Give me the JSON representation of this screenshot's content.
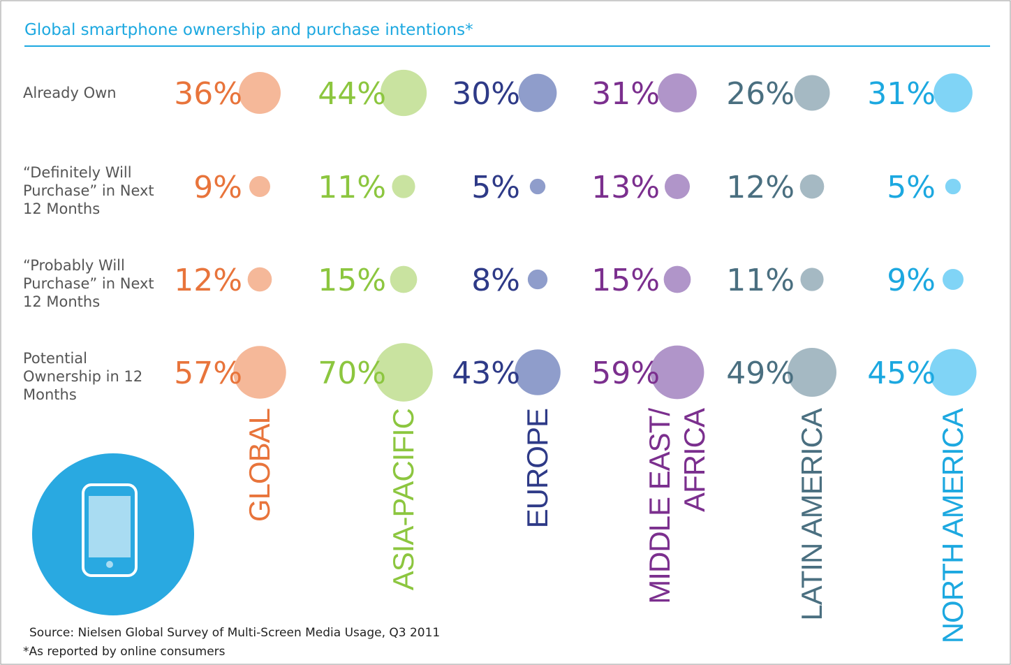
{
  "chart_data": {
    "type": "bubble_grid",
    "title": "Global smartphone ownership and purchase intentions*",
    "categories": [
      "Already Own",
      "“Definitely Will Purchase” in Next 12 Months",
      "“Probably Will Purchase” in Next 12 Months",
      "Potential Ownership in 12 Months"
    ],
    "series": [
      {
        "name": "GLOBAL",
        "color": "#f5b899",
        "label_color": "#e8743b",
        "values": [
          36,
          9,
          12,
          57
        ],
        "value_labels": [
          "36%",
          "9%",
          "12%",
          "57%"
        ]
      },
      {
        "name": "ASIA-PACIFIC",
        "color": "#c9e3a0",
        "label_color": "#8cc63f",
        "values": [
          44,
          11,
          15,
          70
        ],
        "value_labels": [
          "44%",
          "11%",
          "15%",
          "70%"
        ]
      },
      {
        "name": "EUROPE",
        "color": "#8f9dcb",
        "label_color": "#2e3a87",
        "values": [
          30,
          5,
          8,
          43
        ],
        "value_labels": [
          "30%",
          "5%",
          "8%",
          "43%"
        ]
      },
      {
        "name": "MIDDLE EAST/\nAFRICA",
        "color": "#b095c9",
        "label_color": "#7b2f8e",
        "values": [
          31,
          13,
          15,
          59
        ],
        "value_labels": [
          "31%",
          "13%",
          "15%",
          "59%"
        ]
      },
      {
        "name": "LATIN AMERICA",
        "color": "#a5b9c3",
        "label_color": "#4a6f80",
        "values": [
          26,
          12,
          11,
          49
        ],
        "value_labels": [
          "26%",
          "12%",
          "11%",
          "49%"
        ]
      },
      {
        "name": "NORTH AMERICA",
        "color": "#80d4f6",
        "label_color": "#1ca8e0",
        "values": [
          31,
          5,
          9,
          45
        ],
        "value_labels": [
          "31%",
          "5%",
          "9%",
          "45%"
        ]
      }
    ],
    "notes": [
      "Source: Nielsen Global Survey of Multi-Screen Media Usage, Q3 2011",
      "*As reported by online consumers"
    ]
  }
}
